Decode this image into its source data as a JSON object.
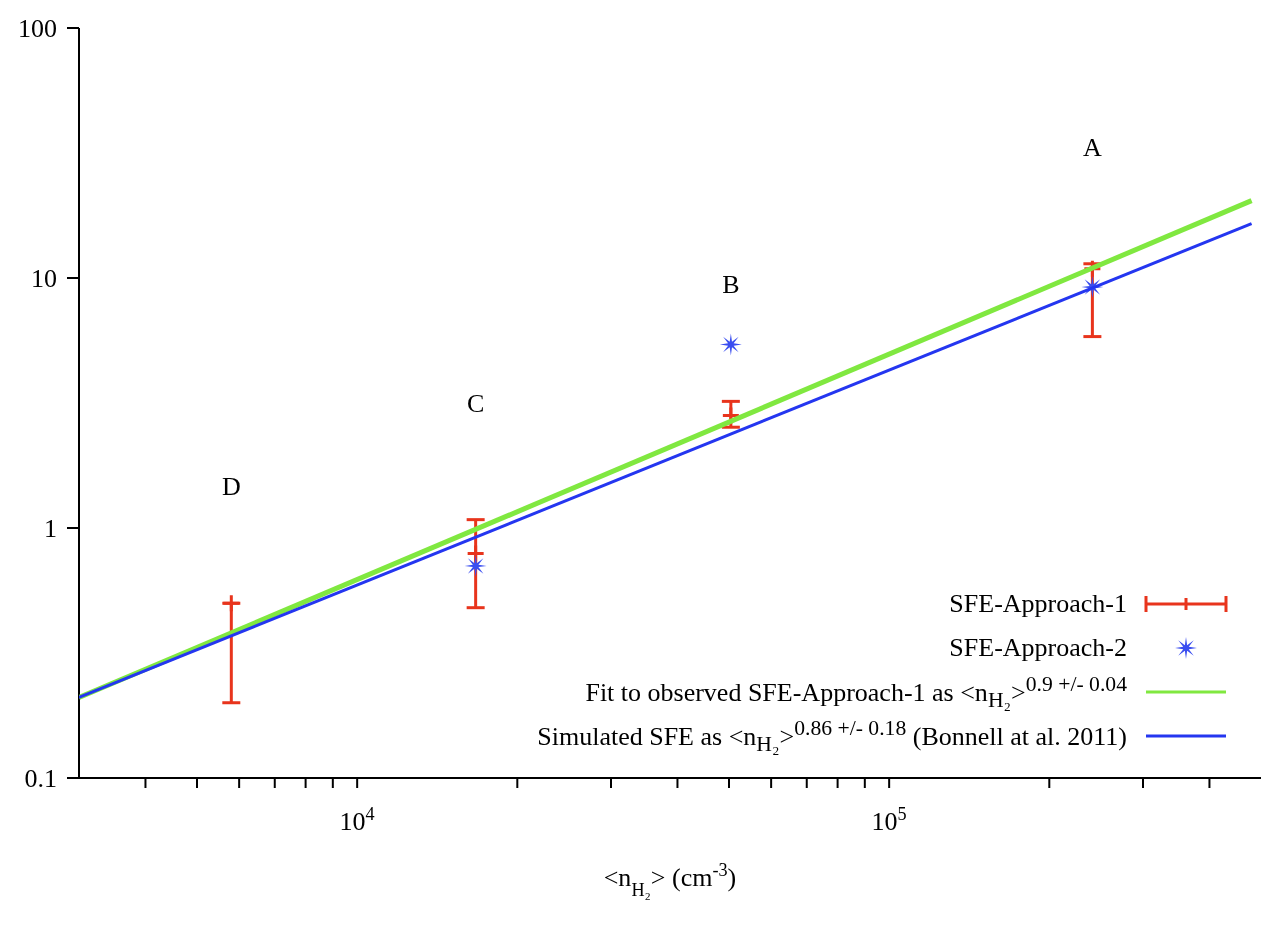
{
  "chart_data": {
    "type": "scatter",
    "xlabel": "<n$_{H₂}$> (cm$^{-3}$)",
    "log": "xy",
    "grid": false,
    "legend": "bottom right",
    "xlim": [
      3000,
      500000
    ],
    "ylim": [
      0.1,
      100
    ],
    "xticks": [
      {
        "value": 4000,
        "label": null
      },
      {
        "value": 5000,
        "label": null
      },
      {
        "value": 6000,
        "label": null
      },
      {
        "value": 7000,
        "label": null
      },
      {
        "value": 8000,
        "label": null
      },
      {
        "value": 9000,
        "label": null
      },
      {
        "value": 10000,
        "label": "10$^{4}$"
      },
      {
        "value": 20000,
        "label": null
      },
      {
        "value": 30000,
        "label": null
      },
      {
        "value": 40000,
        "label": null
      },
      {
        "value": 50000,
        "label": null
      },
      {
        "value": 60000,
        "label": null
      },
      {
        "value": 70000,
        "label": null
      },
      {
        "value": 80000,
        "label": null
      },
      {
        "value": 90000,
        "label": null
      },
      {
        "value": 100000,
        "label": "10$^{5}$"
      },
      {
        "value": 200000,
        "label": null
      },
      {
        "value": 300000,
        "label": null
      },
      {
        "value": 400000,
        "label": null
      }
    ],
    "yticks": [
      0.1,
      1,
      10,
      100
    ],
    "series": [
      {
        "name": "SFE-Approach-1",
        "type": "scatter",
        "marker": "cross",
        "color": "#e8341c",
        "x": [
          5800,
          16700,
          50400,
          241000
        ],
        "values": [
          0.5,
          0.79,
          2.82,
          10.9
        ],
        "errors": [
          [
            0.2,
            0.5
          ],
          [
            0.48,
            1.08
          ],
          [
            2.53,
            3.21
          ],
          [
            5.83,
            11.4
          ]
        ]
      },
      {
        "name": "SFE-Approach-2",
        "type": "scatter",
        "marker": "star",
        "color": "#3a4ef0",
        "x": [
          16700,
          50400,
          241000
        ],
        "values": [
          0.705,
          5.42,
          9.2
        ]
      },
      {
        "name": "Fit to observed SFE-Approach-1 as <n$_{H₂}$>$^{0.9 +/- 0.04}$",
        "type": "line",
        "marker": "none",
        "line_style": "solid",
        "color": "#80e840",
        "x": [
          3000,
          480000
        ],
        "values": [
          0.21,
          20.4
        ]
      },
      {
        "name": "Simulated SFE as <n$_{H₂}$>$^{0.86 +/- 0.18}$ (Bonnell at al. 2011)",
        "type": "line",
        "marker": "none",
        "line_style": "solid",
        "color": "#2436f0",
        "x": [
          3000,
          480000
        ],
        "values": [
          0.21,
          16.5
        ]
      }
    ],
    "annotations": [
      "D",
      "C",
      "B",
      "A"
    ]
  }
}
